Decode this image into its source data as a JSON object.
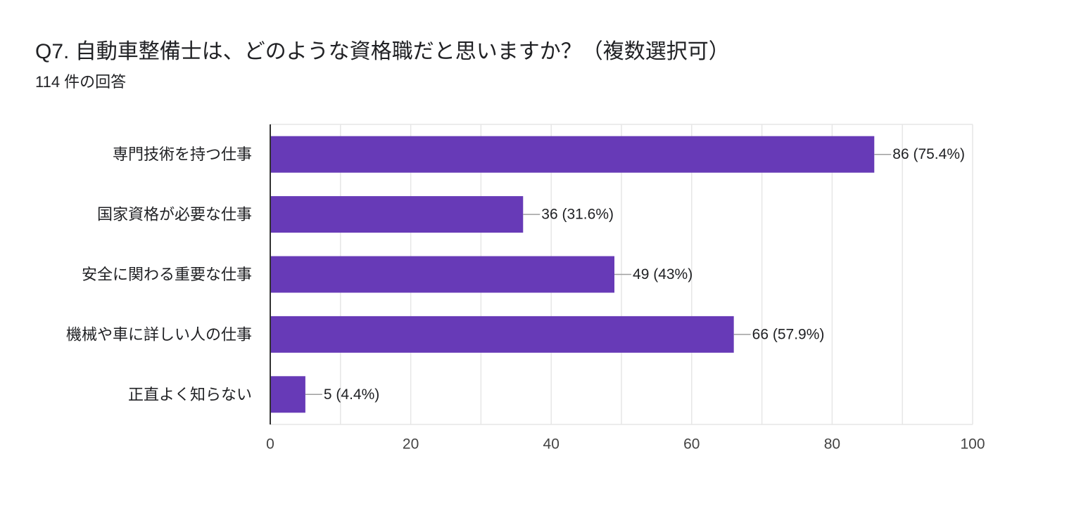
{
  "question": {
    "title": "Q7. 自動車整備士は、どのような資格職だと思いますか？（複数選択可）",
    "response_count": "114 件の回答"
  },
  "colors": {
    "bar": "#673ab7",
    "gridline": "#e6e6e6",
    "axis": "#333333",
    "leader": "#9e9e9e"
  },
  "chart_data": {
    "type": "bar",
    "orientation": "horizontal",
    "title": "",
    "xlabel": "",
    "ylabel": "",
    "categories": [
      "専門技術を持つ仕事",
      "国家資格が必要な仕事",
      "安全に関わる重要な仕事",
      "機械や車に詳しい人の仕事",
      "正直よく知らない"
    ],
    "values": [
      86,
      36,
      49,
      66,
      5
    ],
    "data_labels": [
      "86 (75.4%)",
      "36 (31.6%)",
      "49 (43%)",
      "66 (57.9%)",
      "5 (4.4%)"
    ],
    "xlim": [
      0,
      100
    ],
    "x_ticks": [
      0,
      20,
      40,
      60,
      80,
      100
    ],
    "x_tick_labels": [
      "0",
      "20",
      "40",
      "60",
      "80",
      "100"
    ],
    "minor_gridlines_step": 10,
    "grid": true,
    "legend": "none"
  }
}
